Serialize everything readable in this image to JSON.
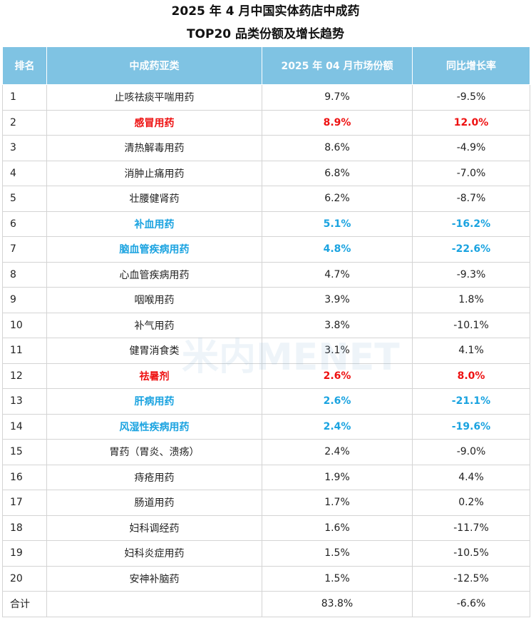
{
  "title_line1": "2025 年 4 月中国实体药店中成药",
  "title_line2": "TOP20 品类份额及增长趋势",
  "headers": [
    "排名",
    "中成药亚类",
    "2025 年 04 月市场份额",
    "同比增长率"
  ],
  "watermark": "米内MENET",
  "colors": {
    "header_bg": "#7fc3e3",
    "highlight_red": "#ee1111",
    "highlight_blue": "#1aa3e0"
  },
  "chart_data": {
    "type": "table",
    "columns": [
      "排名",
      "中成药亚类",
      "2025 年 04 月市场份额",
      "同比增长率"
    ],
    "rows": [
      {
        "rank": "1",
        "category": "止咳祛痰平喘用药",
        "share": "9.7%",
        "growth": "-9.5%",
        "highlight": "none"
      },
      {
        "rank": "2",
        "category": "感冒用药",
        "share": "8.9%",
        "growth": "12.0%",
        "highlight": "red"
      },
      {
        "rank": "3",
        "category": "清热解毒用药",
        "share": "8.6%",
        "growth": "-4.9%",
        "highlight": "none"
      },
      {
        "rank": "4",
        "category": "消肿止痛用药",
        "share": "6.8%",
        "growth": "-7.0%",
        "highlight": "none"
      },
      {
        "rank": "5",
        "category": "壮腰健肾药",
        "share": "6.2%",
        "growth": "-8.7%",
        "highlight": "none"
      },
      {
        "rank": "6",
        "category": "补血用药",
        "share": "5.1%",
        "growth": "-16.2%",
        "highlight": "blue"
      },
      {
        "rank": "7",
        "category": "脑血管疾病用药",
        "share": "4.8%",
        "growth": "-22.6%",
        "highlight": "blue"
      },
      {
        "rank": "8",
        "category": "心血管疾病用药",
        "share": "4.7%",
        "growth": "-9.3%",
        "highlight": "none"
      },
      {
        "rank": "9",
        "category": "咽喉用药",
        "share": "3.9%",
        "growth": "1.8%",
        "highlight": "none"
      },
      {
        "rank": "10",
        "category": "补气用药",
        "share": "3.8%",
        "growth": "-10.1%",
        "highlight": "none"
      },
      {
        "rank": "11",
        "category": "健胃消食类",
        "share": "3.1%",
        "growth": "4.1%",
        "highlight": "none"
      },
      {
        "rank": "12",
        "category": "祛暑剂",
        "share": "2.6%",
        "growth": "8.0%",
        "highlight": "red"
      },
      {
        "rank": "13",
        "category": "肝病用药",
        "share": "2.6%",
        "growth": "-21.1%",
        "highlight": "blue"
      },
      {
        "rank": "14",
        "category": "风湿性疾病用药",
        "share": "2.4%",
        "growth": "-19.6%",
        "highlight": "blue"
      },
      {
        "rank": "15",
        "category": "胃药（胃炎、溃疡）",
        "share": "2.4%",
        "growth": "-9.0%",
        "highlight": "none"
      },
      {
        "rank": "16",
        "category": "痔疮用药",
        "share": "1.9%",
        "growth": "4.4%",
        "highlight": "none"
      },
      {
        "rank": "17",
        "category": "肠道用药",
        "share": "1.7%",
        "growth": "0.2%",
        "highlight": "none"
      },
      {
        "rank": "18",
        "category": "妇科调经药",
        "share": "1.6%",
        "growth": "-11.7%",
        "highlight": "none"
      },
      {
        "rank": "19",
        "category": "妇科炎症用药",
        "share": "1.5%",
        "growth": "-10.5%",
        "highlight": "none"
      },
      {
        "rank": "20",
        "category": "安神补脑药",
        "share": "1.5%",
        "growth": "-12.5%",
        "highlight": "none"
      }
    ],
    "total": {
      "rank": "合计",
      "category": "",
      "share": "83.8%",
      "growth": "-6.6%"
    }
  }
}
